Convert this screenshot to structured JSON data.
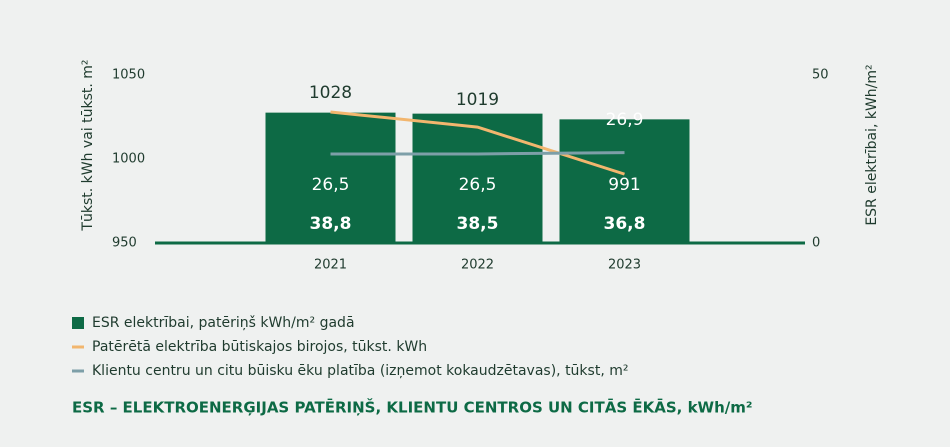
{
  "chart_data": {
    "type": "bar",
    "title": "ESR – ELEKTROENERĢIJAS PATĒRIŅŠ, KLIENTU CENTROS UN CITĀS ĒKĀS, kWh/m²",
    "ylabel": "Tūkst. kWh vai tūkst. m²",
    "y2label": "ESR elektrībai, kWh/m²",
    "categories": [
      "2021",
      "2022",
      "2023"
    ],
    "series": [
      {
        "name": "ESR elektrībai, patēriņš kWh/m² gadā",
        "type": "bar",
        "axis": "y2",
        "color": "#0d6a45",
        "values": [
          38.8,
          38.5,
          36.8
        ],
        "value_labels": [
          "38,8",
          "38,5",
          "36,8"
        ]
      },
      {
        "name": "Patērētā elektrība būtiskajos birojos, tūkst. kWh",
        "type": "line",
        "color": "#f2b66e",
        "values": [
          1028,
          1019,
          991
        ]
      },
      {
        "name": "Klientu centru un citu būisku ēku platība (izņemot kokaudzētavas), tūkst, m²",
        "type": "line",
        "axis": "y2",
        "color": "#7d9fa8",
        "values": [
          26.5,
          26.5,
          26.9
        ],
        "value_labels": [
          "26,5",
          "26,5",
          "26,9"
        ]
      }
    ],
    "ylim": [
      950,
      1050
    ],
    "yticks": [
      950,
      1000,
      1050
    ],
    "y2lim": [
      0,
      50
    ],
    "y2ticks": [
      0,
      50
    ]
  }
}
